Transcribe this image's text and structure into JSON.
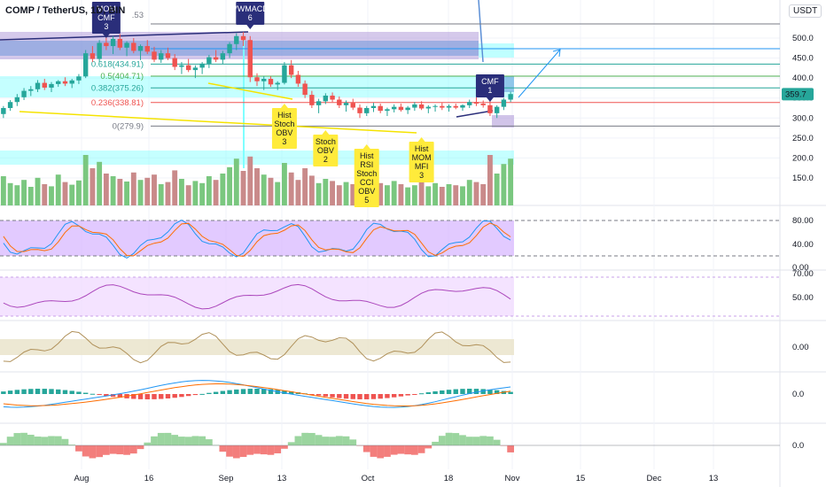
{
  "header": {
    "symbol": "COMP / TetherUS, 1D, BIN",
    "currency_badge": "USDT",
    "top_value": ".53"
  },
  "colors": {
    "up": "#26a69a",
    "down": "#ef5350",
    "vol_up": "#7ac77f",
    "vol_down": "#c98a8a",
    "cyan_zone": "#7fffff",
    "blue_zone": "#5b8fd6",
    "purple_zone": "#b39ddb",
    "callout_yellow": "#ffeb3b",
    "callout_navy": "#2a2e7a",
    "stoch_band": "#d6b4ff",
    "rsi_band": "#f1dcff",
    "cci_band": "#e9e2c8"
  },
  "chart_data": {
    "type": "candlestick",
    "price_axis": {
      "ticks": [
        500.0,
        450.0,
        400.0,
        350.0,
        300.0,
        250.0,
        200.0,
        150.0
      ],
      "ylim": [
        140,
        545
      ]
    },
    "last_price": 359.7,
    "x_labels": [
      "Aug",
      "16",
      "Sep",
      "13",
      "Oct",
      "18",
      "Nov",
      "15",
      "Dec",
      "13"
    ],
    "fib_levels": [
      {
        "label": "0.618(434.91)",
        "value": 434.91
      },
      {
        "label": "0.5(404.71)",
        "value": 404.71
      },
      {
        "label": "0.382(375.26)",
        "value": 375.26
      },
      {
        "label": "0.236(338.81)",
        "value": 338.81
      },
      {
        "label": "0(279.9)",
        "value": 279.9
      }
    ],
    "callouts": [
      {
        "text": [
          "MOM",
          "CMF",
          "3"
        ],
        "style": "navy",
        "candle": 15
      },
      {
        "text": [
          "VWMACD",
          "6"
        ],
        "style": "navy",
        "candle": 36
      },
      {
        "text": [
          "Hist",
          "Stoch",
          "OBV",
          "3"
        ],
        "style": "yellow",
        "candle": 41
      },
      {
        "text": [
          "Stoch",
          "OBV",
          "2"
        ],
        "style": "yellow",
        "candle": 47
      },
      {
        "text": [
          "Hist",
          "RSI",
          "Stoch",
          "CCI",
          "OBV",
          "5"
        ],
        "style": "yellow",
        "candle": 53
      },
      {
        "text": [
          "Hist",
          "MOM",
          "MFI",
          "3"
        ],
        "style": "yellow",
        "candle": 61
      },
      {
        "text": [
          "CMF",
          "1"
        ],
        "style": "navy",
        "candle": 71
      }
    ],
    "candles": [
      [
        310,
        330,
        300,
        325
      ],
      [
        325,
        345,
        318,
        340
      ],
      [
        340,
        360,
        330,
        352
      ],
      [
        352,
        375,
        345,
        368
      ],
      [
        368,
        380,
        355,
        372
      ],
      [
        372,
        395,
        365,
        388
      ],
      [
        388,
        398,
        370,
        376
      ],
      [
        376,
        390,
        365,
        385
      ],
      [
        385,
        395,
        378,
        392
      ],
      [
        392,
        402,
        380,
        386
      ],
      [
        386,
        398,
        375,
        394
      ],
      [
        394,
        410,
        385,
        404
      ],
      [
        404,
        470,
        400,
        462
      ],
      [
        462,
        480,
        440,
        448
      ],
      [
        448,
        495,
        440,
        488
      ],
      [
        488,
        520,
        470,
        480
      ],
      [
        480,
        505,
        460,
        498
      ],
      [
        498,
        510,
        470,
        476
      ],
      [
        476,
        492,
        455,
        488
      ],
      [
        488,
        500,
        462,
        468
      ],
      [
        468,
        484,
        445,
        480
      ],
      [
        480,
        495,
        460,
        466
      ],
      [
        466,
        478,
        440,
        446
      ],
      [
        446,
        470,
        438,
        462
      ],
      [
        462,
        476,
        445,
        450
      ],
      [
        450,
        460,
        420,
        428
      ],
      [
        428,
        440,
        410,
        432
      ],
      [
        432,
        448,
        415,
        420
      ],
      [
        420,
        432,
        400,
        426
      ],
      [
        426,
        440,
        410,
        436
      ],
      [
        436,
        458,
        425,
        452
      ],
      [
        452,
        470,
        440,
        446
      ],
      [
        446,
        468,
        435,
        462
      ],
      [
        462,
        490,
        450,
        485
      ],
      [
        485,
        512,
        470,
        505
      ],
      [
        505,
        515,
        480,
        495
      ],
      [
        495,
        505,
        390,
        402
      ],
      [
        402,
        412,
        380,
        392
      ],
      [
        392,
        405,
        370,
        398
      ],
      [
        398,
        404,
        378,
        384
      ],
      [
        384,
        392,
        370,
        388
      ],
      [
        388,
        440,
        384,
        432
      ],
      [
        432,
        445,
        400,
        408
      ],
      [
        408,
        418,
        378,
        386
      ],
      [
        386,
        394,
        350,
        358
      ],
      [
        358,
        368,
        325,
        332
      ],
      [
        332,
        348,
        312,
        342
      ],
      [
        342,
        362,
        335,
        356
      ],
      [
        356,
        364,
        340,
        346
      ],
      [
        346,
        354,
        325,
        332
      ],
      [
        332,
        344,
        316,
        338
      ],
      [
        338,
        348,
        320,
        326
      ],
      [
        326,
        334,
        300,
        312
      ],
      [
        312,
        330,
        305,
        325
      ],
      [
        325,
        338,
        315,
        330
      ],
      [
        330,
        336,
        312,
        318
      ],
      [
        318,
        326,
        305,
        322
      ],
      [
        322,
        334,
        314,
        328
      ],
      [
        328,
        336,
        316,
        320
      ],
      [
        320,
        330,
        310,
        326
      ],
      [
        326,
        340,
        318,
        334
      ],
      [
        334,
        342,
        320,
        324
      ],
      [
        324,
        332,
        312,
        328
      ],
      [
        328,
        334,
        316,
        330
      ],
      [
        330,
        338,
        320,
        326
      ],
      [
        326,
        334,
        316,
        330
      ],
      [
        330,
        336,
        322,
        326
      ],
      [
        326,
        334,
        318,
        332
      ],
      [
        332,
        346,
        325,
        340
      ],
      [
        340,
        352,
        330,
        336
      ],
      [
        336,
        344,
        326,
        332
      ],
      [
        332,
        345,
        305,
        312
      ],
      [
        312,
        332,
        300,
        328
      ],
      [
        328,
        350,
        320,
        346
      ],
      [
        346,
        366,
        340,
        360
      ]
    ],
    "volumes": [
      55,
      42,
      38,
      48,
      35,
      52,
      40,
      36,
      58,
      44,
      39,
      47,
      95,
      70,
      82,
      60,
      55,
      50,
      45,
      62,
      48,
      52,
      58,
      40,
      44,
      66,
      50,
      38,
      46,
      42,
      55,
      48,
      60,
      72,
      88,
      65,
      92,
      70,
      58,
      52,
      44,
      80,
      62,
      48,
      70,
      56,
      42,
      50,
      46,
      38,
      44,
      40,
      60,
      48,
      36,
      42,
      38,
      46,
      40,
      34,
      38,
      44,
      36,
      42,
      35,
      40,
      38,
      36,
      48,
      44,
      40,
      95,
      60,
      78,
      88
    ],
    "panes": [
      {
        "name": "stoch",
        "ticks": [
          "80.00",
          "40.00",
          "0.00"
        ]
      },
      {
        "name": "rsi",
        "ticks": [
          "70.00",
          "50.00"
        ]
      },
      {
        "name": "cci",
        "ticks": [
          "0.00"
        ]
      },
      {
        "name": "macd",
        "ticks": [
          "0.0"
        ]
      },
      {
        "name": "momentum",
        "ticks": [
          "0.0"
        ]
      }
    ]
  }
}
